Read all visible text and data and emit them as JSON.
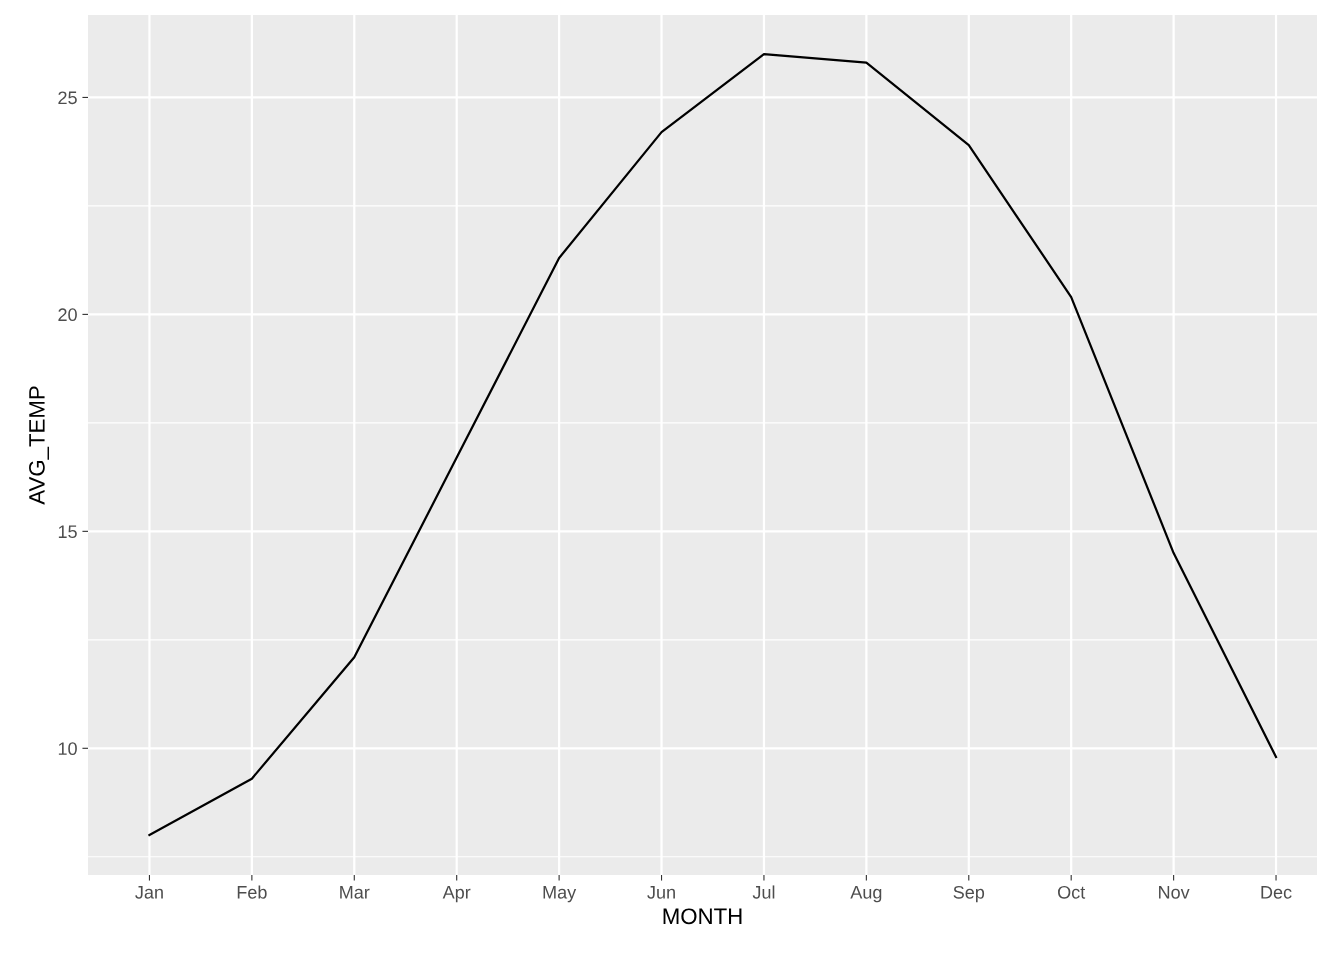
{
  "chart_data": {
    "type": "line",
    "xlabel": "MONTH",
    "ylabel": "AVG_TEMP",
    "categories": [
      "Jan",
      "Feb",
      "Mar",
      "Apr",
      "May",
      "Jun",
      "Jul",
      "Aug",
      "Sep",
      "Oct",
      "Nov",
      "Dec"
    ],
    "series": [
      {
        "color": "#000000",
        "values": [
          8.0,
          9.3,
          12.1,
          16.7,
          21.3,
          24.2,
          26.0,
          25.8,
          23.9,
          20.4,
          14.5,
          9.8
        ]
      }
    ],
    "ylim": [
      7.08,
      26.9
    ],
    "yticks": [
      {
        "value": 7.5,
        "label": null
      },
      10,
      {
        "value": 12.5,
        "label": null
      },
      15,
      {
        "value": 17.5,
        "label": null
      },
      20,
      {
        "value": 22.5,
        "label": null
      },
      25
    ],
    "grid": true,
    "line_style": "solid",
    "marker": "none"
  }
}
